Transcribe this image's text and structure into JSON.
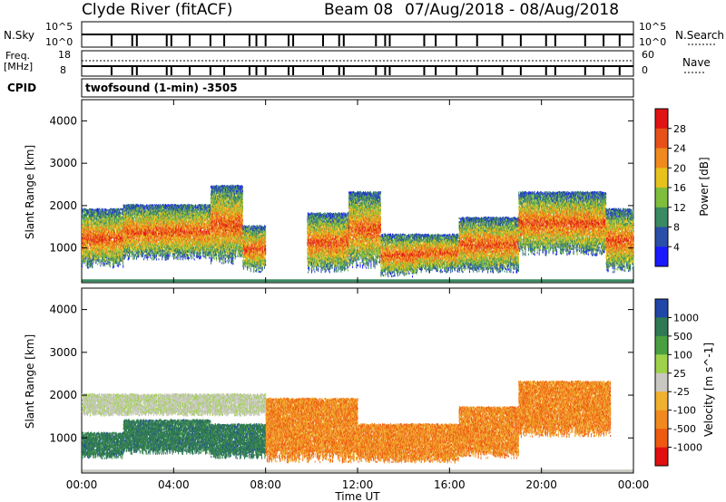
{
  "header": {
    "radar": "Clyde River (fitACF)",
    "beam": "Beam 08",
    "dates": "07/Aug/2018 - 08/Aug/2018"
  },
  "strips": {
    "nsky_label": "N.Sky",
    "nsky_top": "10^5",
    "nsky_bottom": "10^0",
    "nsearch_label": "N.Search",
    "nsearch_top": "10^5",
    "nsearch_bottom": "10^0",
    "freq_label": "Freq.",
    "freq_unit": "[MHz]",
    "freq_top": "18",
    "freq_bottom": "8",
    "nave_label": "Nave",
    "nave_top": "60",
    "nave_bottom": "0",
    "cpid_label": "CPID",
    "cpid_value": "twofsound (1-min) -3505"
  },
  "chart_data": [
    {
      "type": "heatmap",
      "name": "power",
      "ylabel": "Slant Range [km]",
      "colorbar_label": "Power [dB]",
      "colorbar_ticks": [
        "4",
        "8",
        "12",
        "16",
        "20",
        "24",
        "28"
      ],
      "colors": [
        "#1a1aff",
        "#2a4fa8",
        "#3a8a62",
        "#7fbe3c",
        "#e8c21c",
        "#f08a1e",
        "#e8501a",
        "#e01414"
      ],
      "yticks": [
        "1000",
        "2000",
        "3000",
        "4000"
      ],
      "ylim": [
        180,
        4500
      ],
      "bands": [
        {
          "t0": 0.0,
          "t1": 1.8,
          "r0": 500,
          "r1": 1900
        },
        {
          "t0": 1.8,
          "t1": 5.6,
          "r0": 700,
          "r1": 2000
        },
        {
          "t0": 5.6,
          "t1": 7.0,
          "r0": 600,
          "r1": 2450
        },
        {
          "t0": 7.0,
          "t1": 8.0,
          "r0": 400,
          "r1": 1500
        },
        {
          "t0": 9.8,
          "t1": 11.6,
          "r0": 400,
          "r1": 1800
        },
        {
          "t0": 11.6,
          "t1": 13.0,
          "r0": 500,
          "r1": 2300
        },
        {
          "t0": 13.0,
          "t1": 14.6,
          "r0": 300,
          "r1": 1300
        },
        {
          "t0": 14.6,
          "t1": 16.4,
          "r0": 400,
          "r1": 1300
        },
        {
          "t0": 16.4,
          "t1": 19.0,
          "r0": 400,
          "r1": 1700
        },
        {
          "t0": 19.0,
          "t1": 22.8,
          "r0": 800,
          "r1": 2300
        },
        {
          "t0": 22.8,
          "t1": 24.0,
          "r0": 400,
          "r1": 1900
        }
      ]
    },
    {
      "type": "heatmap",
      "name": "velocity",
      "ylabel": "Slant Range [km]",
      "colorbar_label": "Velocity [m s^-1]",
      "colorbar_ticks": [
        "1000",
        "500",
        "100",
        "25",
        "-25",
        "-100",
        "-500",
        "-1000"
      ],
      "colors": [
        "#2046a8",
        "#2f7a52",
        "#4aa040",
        "#9fd24a",
        "#c8c8c0",
        "#f0b030",
        "#f08a1e",
        "#ee5a10",
        "#e01010"
      ],
      "yticks": [
        "1000",
        "2000",
        "3000",
        "4000"
      ],
      "ylim": [
        180,
        4500
      ],
      "bands": [
        {
          "t0": 0.0,
          "t1": 1.8,
          "r0": 500,
          "r1": 1100,
          "class": "positive"
        },
        {
          "t0": 1.8,
          "t1": 5.6,
          "r0": 600,
          "r1": 1400,
          "class": "positive"
        },
        {
          "t0": 5.6,
          "t1": 8.0,
          "r0": 500,
          "r1": 1300,
          "class": "positive"
        },
        {
          "t0": 8.0,
          "t1": 12.0,
          "r0": 400,
          "r1": 1900,
          "class": "negative"
        },
        {
          "t0": 12.0,
          "t1": 16.4,
          "r0": 400,
          "r1": 1300,
          "class": "negative"
        },
        {
          "t0": 16.4,
          "t1": 19.0,
          "r0": 500,
          "r1": 1700,
          "class": "negative"
        },
        {
          "t0": 19.0,
          "t1": 23.0,
          "r0": 1000,
          "r1": 2300,
          "class": "negative"
        },
        {
          "t0": 0.0,
          "t1": 8.0,
          "r0": 1500,
          "r1": 2000,
          "class": "ground"
        }
      ]
    }
  ],
  "xaxis": {
    "label": "Time UT",
    "ticks": [
      "00:00",
      "04:00",
      "08:00",
      "12:00",
      "16:00",
      "20:00",
      "00:00"
    ]
  }
}
